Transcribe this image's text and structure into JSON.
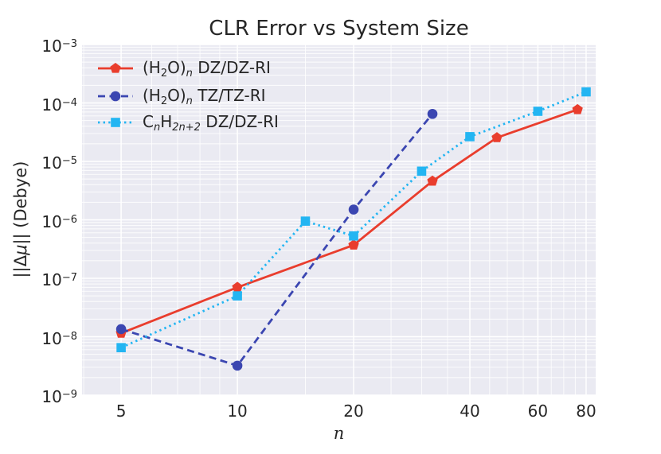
{
  "title": "CLR Error vs System Size",
  "axes": {
    "x_label": "n",
    "y_label_parts": [
      {
        "t": "||Δ"
      },
      {
        "t": "μ",
        "it": true
      },
      {
        "t": "|| (Debye)"
      }
    ],
    "y_tick_exponents": [
      -3,
      -4,
      -5,
      -6,
      -7,
      -8,
      -9
    ],
    "x_tick_values": [
      5,
      10,
      20,
      40,
      60,
      80
    ]
  },
  "colors": {
    "plot_background": "#eaeaf2",
    "gridline": "#ffffff",
    "text": "#262626",
    "red_series": "#e93d2d",
    "blue_series": "#3b46b1",
    "cyan_series": "#23b5f2"
  },
  "chart_data": {
    "type": "line",
    "title": "CLR Error vs System Size",
    "xlabel": "n",
    "ylabel": "||Δμ|| (Debye)",
    "x_scale": "log",
    "y_scale": "log",
    "xlim": [
      3.96,
      84.7
    ],
    "ylim": [
      1e-09,
      0.001
    ],
    "grid": true,
    "legend_position": "upper left",
    "x_minor_gridlines": [
      4,
      6,
      7,
      8,
      9,
      15,
      25,
      30,
      35,
      45,
      50,
      55,
      65,
      70,
      75
    ],
    "series": [
      {
        "name": "(H2O)n DZ/DZ-RI",
        "label_parts": [
          {
            "t": "(H"
          },
          {
            "t": "2",
            "sub": true
          },
          {
            "t": "O)"
          },
          {
            "t": "n",
            "sub": true,
            "it": true
          },
          {
            "t": "  DZ/DZ-RI"
          }
        ],
        "color": "#e93d2d",
        "line_style": "solid",
        "marker": "pentagon",
        "x": [
          5,
          10,
          20,
          32,
          47,
          76
        ],
        "y": [
          1.15e-08,
          7e-08,
          3.7e-07,
          4.6e-06,
          2.55e-05,
          7.7e-05
        ]
      },
      {
        "name": "(H2O)n TZ/TZ-RI",
        "label_parts": [
          {
            "t": "(H"
          },
          {
            "t": "2",
            "sub": true
          },
          {
            "t": "O)"
          },
          {
            "t": "n",
            "sub": true,
            "it": true
          },
          {
            "t": "  TZ/TZ-RI"
          }
        ],
        "color": "#3b46b1",
        "line_style": "dashed",
        "marker": "circle",
        "x": [
          5,
          10,
          20,
          32
        ],
        "y": [
          1.35e-08,
          3.2e-09,
          1.5e-06,
          6.5e-05
        ]
      },
      {
        "name": "CnH2n+2 DZ/DZ-RI",
        "label_parts": [
          {
            "t": "C"
          },
          {
            "t": "n",
            "sub": true,
            "it": true
          },
          {
            "t": "H"
          },
          {
            "t": "2n+2",
            "sub": true,
            "it": true
          },
          {
            "t": " DZ/DZ-RI"
          }
        ],
        "color": "#23b5f2",
        "line_style": "dotted",
        "marker": "square",
        "x": [
          5,
          10,
          15,
          20,
          30,
          40,
          60,
          80
        ],
        "y": [
          6.5e-09,
          5e-08,
          9.5e-07,
          5.3e-07,
          6.8e-06,
          2.65e-05,
          7.2e-05,
          0.000155
        ]
      }
    ]
  }
}
